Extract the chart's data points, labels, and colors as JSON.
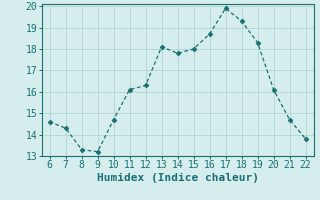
{
  "x": [
    6,
    7,
    8,
    9,
    10,
    11,
    12,
    13,
    14,
    15,
    16,
    17,
    18,
    19,
    20,
    21,
    22
  ],
  "y": [
    14.6,
    14.3,
    13.3,
    13.2,
    14.7,
    16.1,
    16.3,
    18.1,
    17.8,
    18.0,
    18.7,
    19.9,
    19.3,
    18.3,
    16.1,
    14.7,
    13.8
  ],
  "line_color": "#1a7070",
  "marker": "D",
  "marker_size": 2.5,
  "bg_color": "#d5eeed",
  "grid_color": "#b8d8d5",
  "xlabel": "Humidex (Indice chaleur)",
  "xlim": [
    5.5,
    22.5
  ],
  "ylim": [
    13,
    20.1
  ],
  "xticks": [
    6,
    7,
    8,
    9,
    10,
    11,
    12,
    13,
    14,
    15,
    16,
    17,
    18,
    19,
    20,
    21,
    22
  ],
  "yticks": [
    13,
    14,
    15,
    16,
    17,
    18,
    19,
    20
  ],
  "tick_color": "#1a7070",
  "label_color": "#1a7070",
  "xlabel_fontsize": 8,
  "tick_fontsize": 7
}
